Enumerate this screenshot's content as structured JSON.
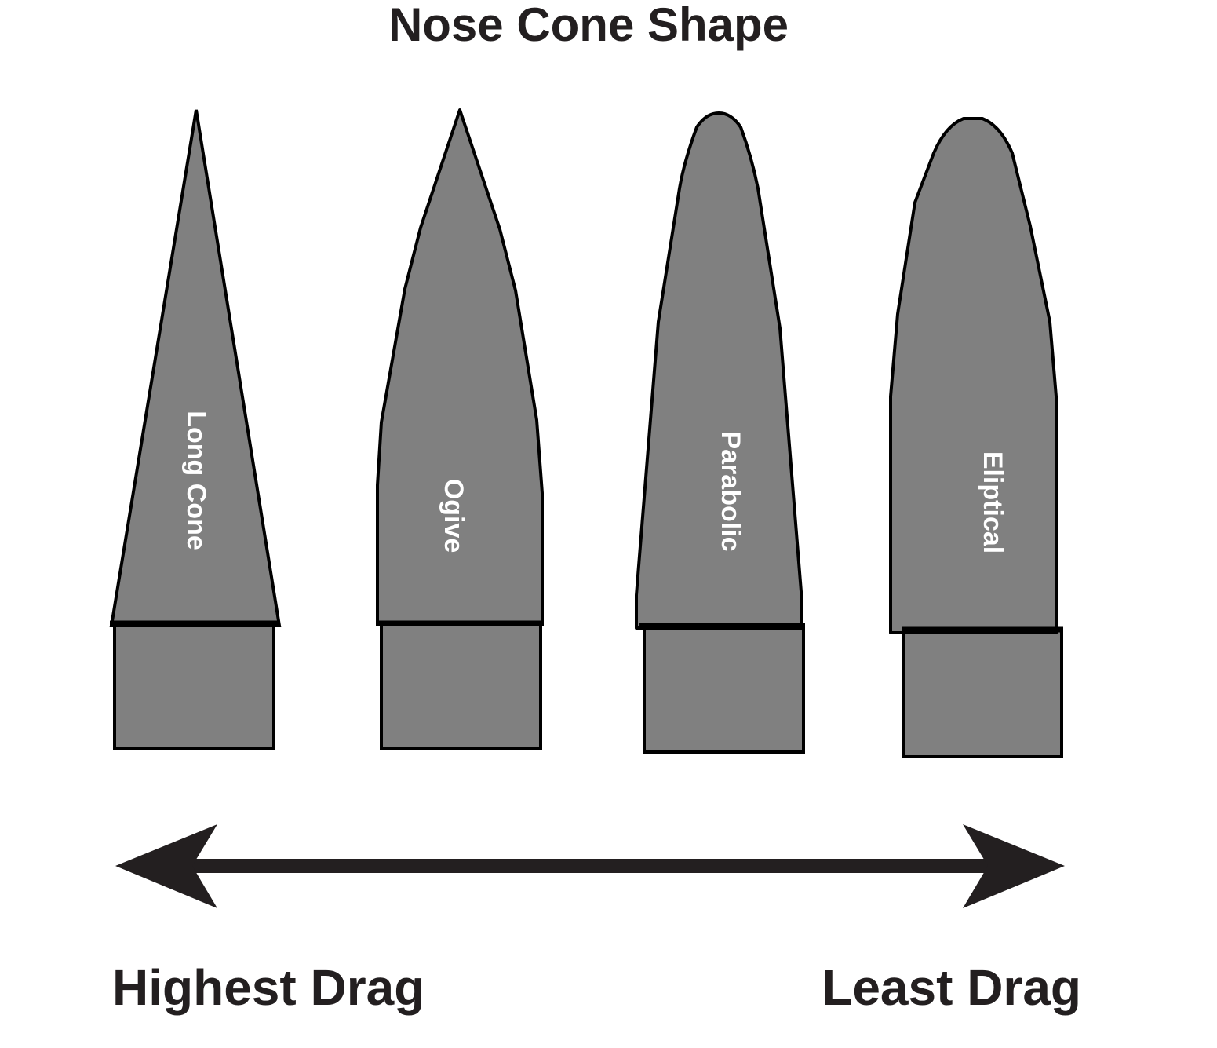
{
  "title": "Nose Cone Shape",
  "shapes": [
    {
      "label": "Long Cone"
    },
    {
      "label": "Ogive"
    },
    {
      "label": "Parabolic"
    },
    {
      "label": "Eliptical"
    }
  ],
  "scale": {
    "left_label": "Highest Drag",
    "right_label": "Least Drag",
    "arrow-icon": "double-headed-arrow"
  },
  "colors": {
    "shape_fill": "#808080",
    "outline": "#000000",
    "text": "#231f20",
    "label_text": "#ffffff"
  }
}
